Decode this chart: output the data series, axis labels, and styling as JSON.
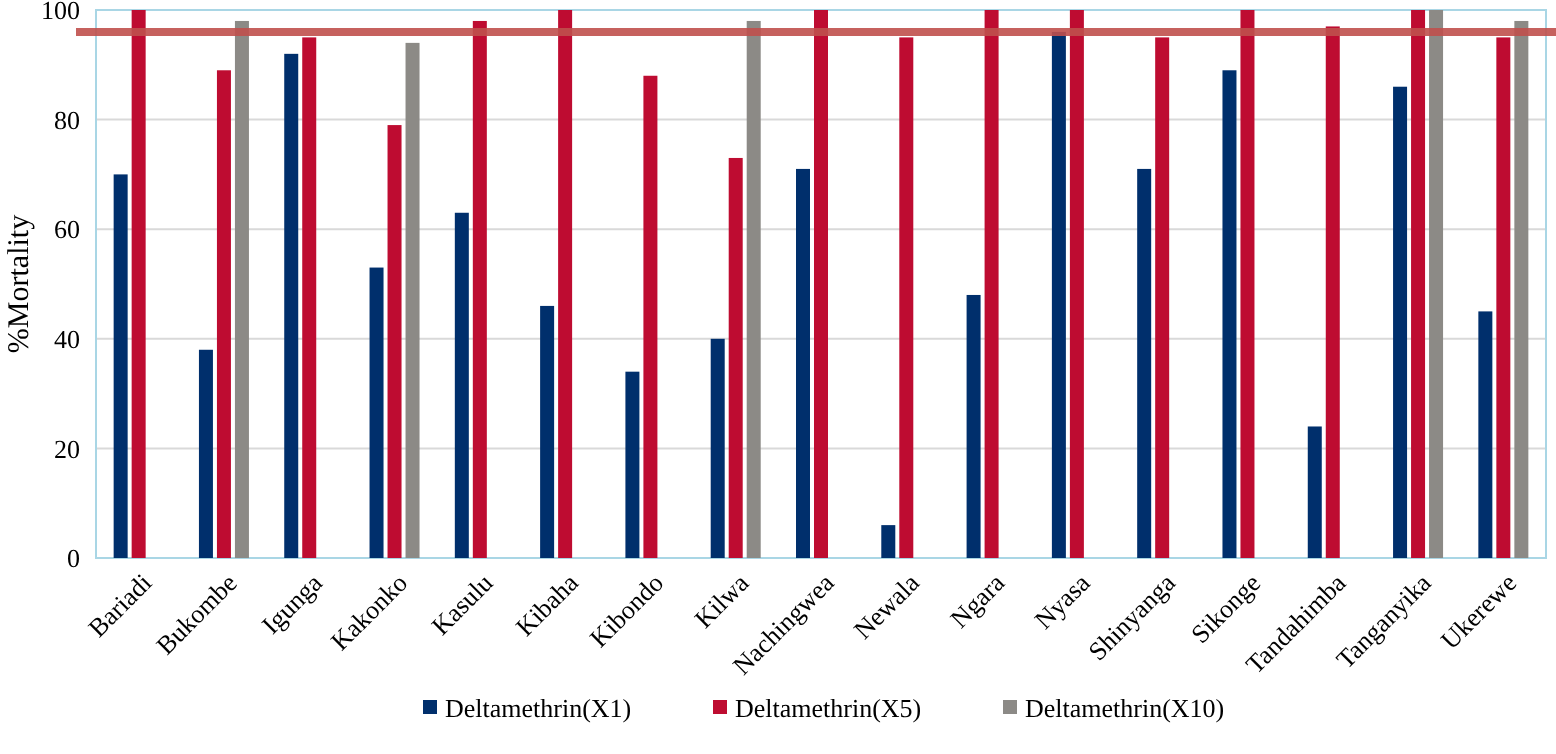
{
  "chart_data": {
    "type": "bar",
    "ylabel": "%Mortality",
    "categories": [
      "Bariadi",
      "Bukombe",
      "Igunga",
      "Kakonko",
      "Kasulu",
      "Kibaha",
      "Kibondo",
      "Kilwa",
      "Nachingwea",
      "Newala",
      "Ngara",
      "Nyasa",
      "Shinyanga",
      "Sikonge",
      "Tandahimba",
      "Tanganyika",
      "Ukerewe"
    ],
    "series": [
      {
        "name": "Deltamethrin(X1)",
        "color": "#002f6c",
        "values": [
          70,
          38,
          92,
          53,
          63,
          46,
          34,
          40,
          71,
          6,
          48,
          96,
          71,
          89,
          24,
          86,
          45
        ]
      },
      {
        "name": "Deltamethrin(X5)",
        "color": "#be0c31",
        "values": [
          100,
          89,
          95,
          79,
          98,
          100,
          88,
          73,
          100,
          95,
          100,
          100,
          95,
          100,
          97,
          100,
          95
        ]
      },
      {
        "name": "Deltamethrin(X10)",
        "color": "#8c8a86",
        "values": [
          null,
          98,
          null,
          94,
          null,
          null,
          null,
          98,
          null,
          null,
          null,
          null,
          null,
          null,
          null,
          100,
          98
        ]
      }
    ],
    "ylim": [
      0,
      100
    ],
    "yticks": [
      0,
      20,
      40,
      60,
      80,
      100
    ],
    "grid": "y",
    "legend": "bottom",
    "ref_lines": [
      {
        "axis": "y",
        "value": 96,
        "color": "#c0504d"
      }
    ]
  }
}
